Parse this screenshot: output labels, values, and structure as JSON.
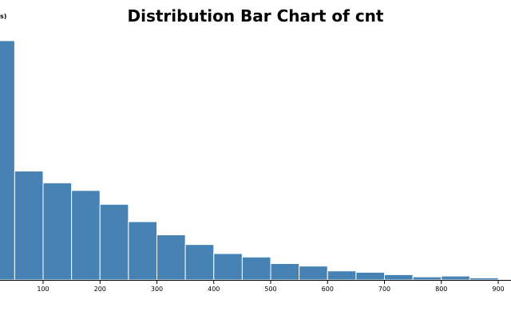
{
  "chart_data": {
    "type": "bar",
    "title": "Distribution Bar Chart of cnt",
    "ylabel": "s)",
    "xlabel": "",
    "bin_width": 50,
    "bins_start": [
      -50,
      0,
      50,
      100,
      150,
      200,
      250,
      300,
      350,
      400,
      450,
      500,
      550,
      600,
      650,
      700,
      750,
      800,
      850,
      900
    ],
    "values": [
      1725,
      1725,
      785,
      700,
      645,
      545,
      420,
      325,
      255,
      190,
      165,
      118,
      100,
      65,
      55,
      38,
      22,
      28,
      15,
      0
    ],
    "xlim": [
      -25,
      920
    ],
    "ylim": [
      0,
      1725
    ],
    "x_ticks": [
      "100",
      "200",
      "300",
      "400",
      "500",
      "600",
      "700",
      "800",
      "900"
    ],
    "x_tick_values": [
      100,
      200,
      300,
      400,
      500,
      600,
      700,
      800,
      900
    ],
    "bar_color": "#4682b4",
    "grid": false,
    "legend": "none"
  }
}
